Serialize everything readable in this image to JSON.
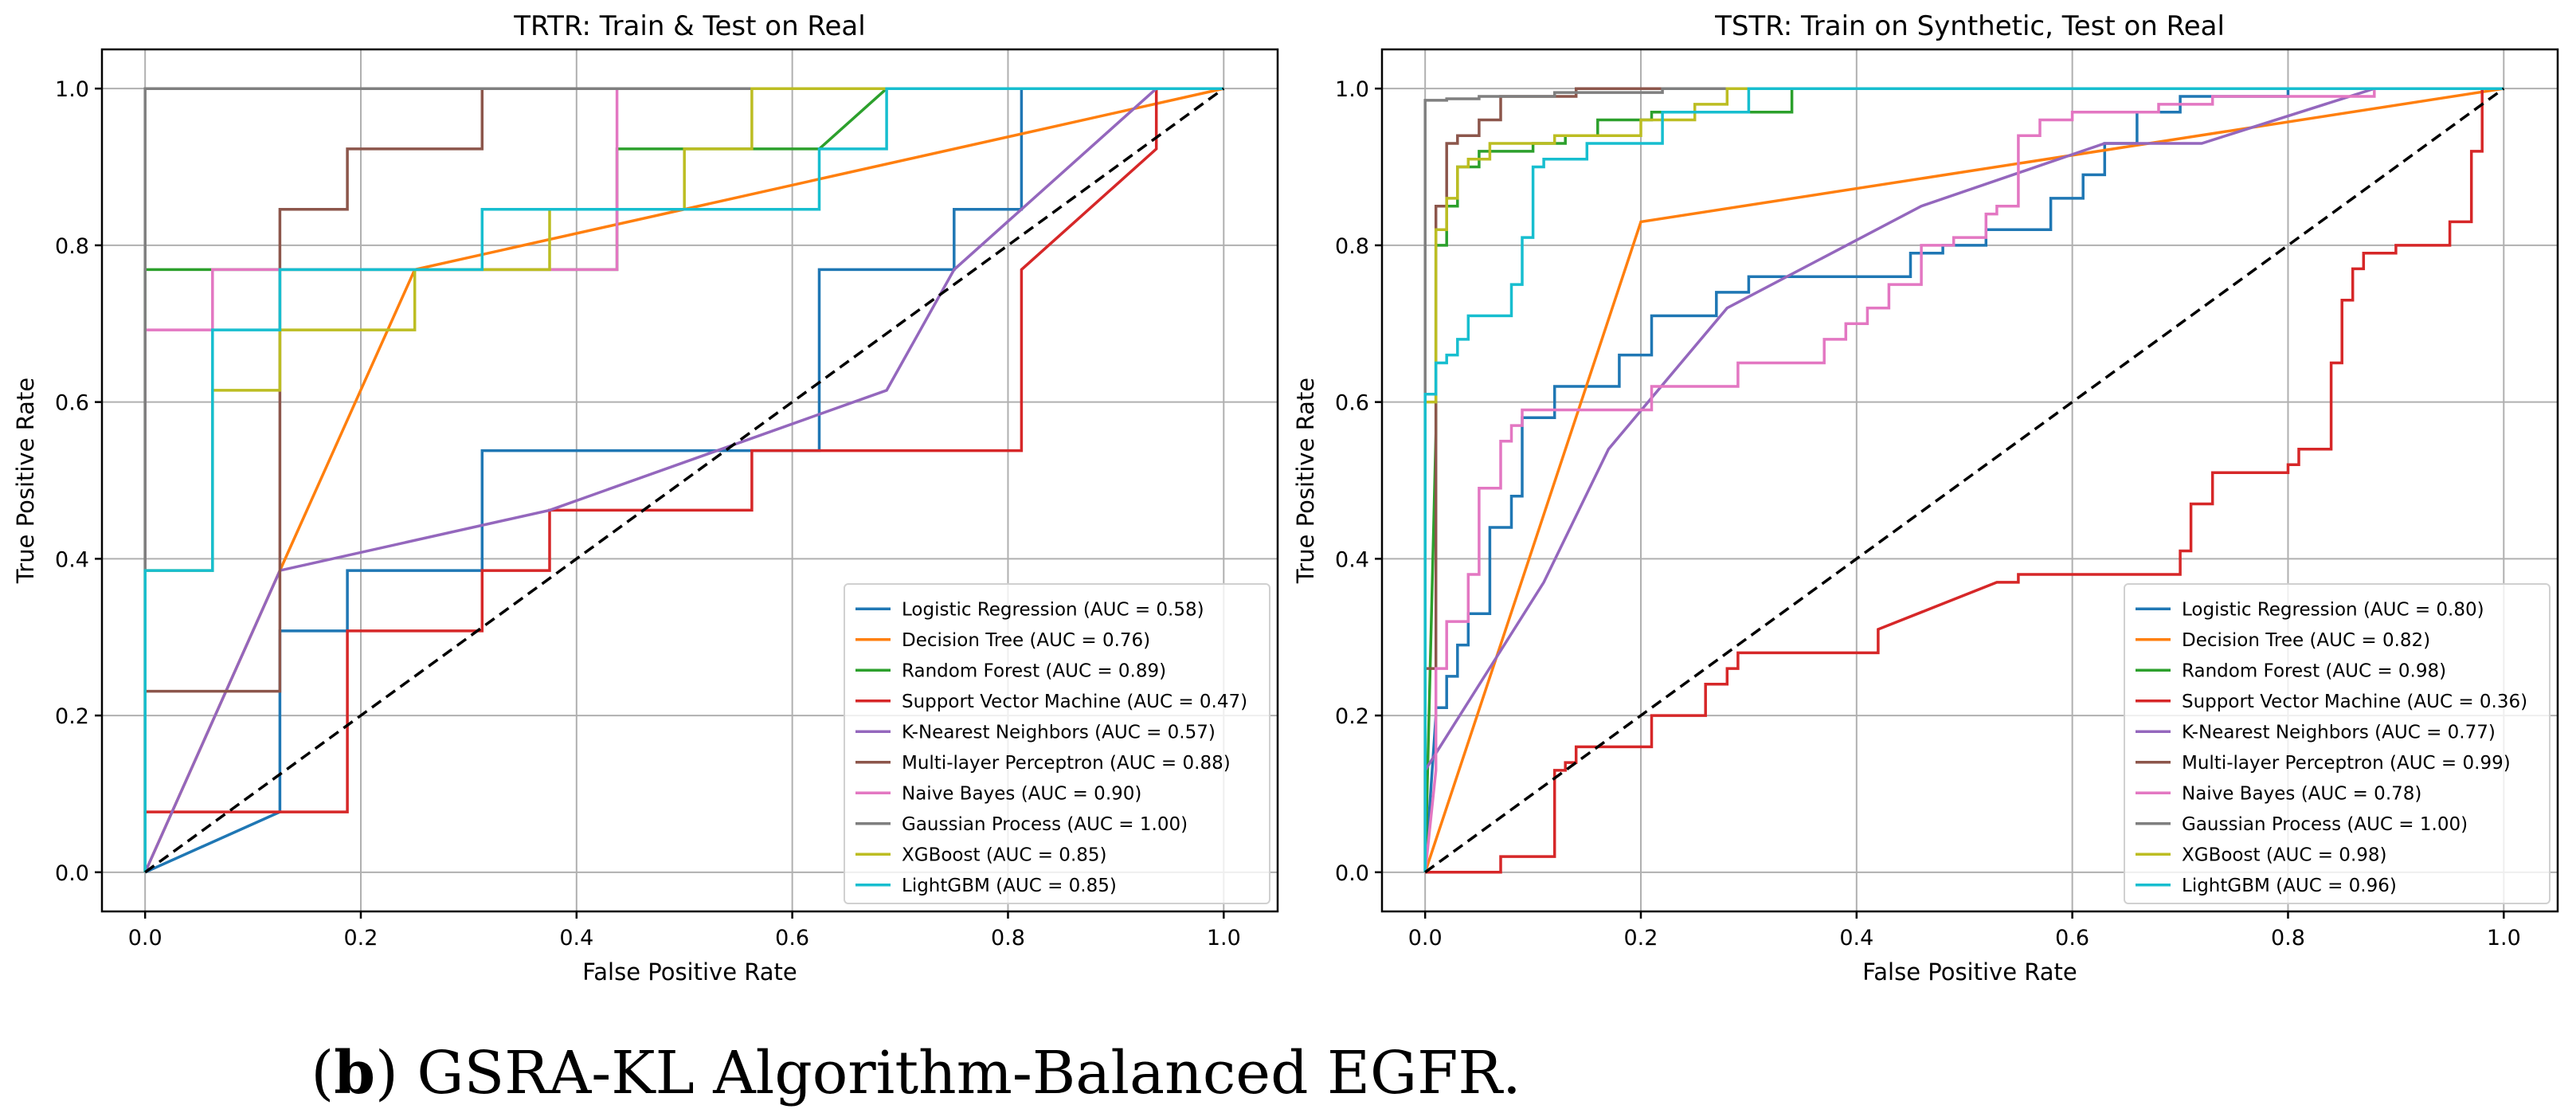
{
  "figure_caption": {
    "label": "b",
    "text": ") GSRA-KL Algorithm-Balanced EGFR.",
    "open_paren": "("
  },
  "colors": {
    "Logistic Regression": "#1f77b4",
    "Decision Tree": "#ff7f0e",
    "Random Forest": "#2ca02c",
    "Support Vector Machine": "#d62728",
    "K-Nearest Neighbors": "#9467bd",
    "Multi-layer Perceptron": "#8c564b",
    "Naive Bayes": "#e377c2",
    "Gaussian Process": "#7f7f7f",
    "XGBoost": "#bcbd22",
    "LightGBM": "#17becf",
    "diagonal": "#000000"
  },
  "chart_data": [
    {
      "type": "line",
      "title": "TRTR: Train & Test on Real",
      "xlabel": "False Positive Rate",
      "ylabel": "True Positive Rate",
      "xlim": [
        -0.04,
        1.05
      ],
      "ylim": [
        -0.05,
        1.05
      ],
      "xticks": [
        "0.0",
        "0.2",
        "0.4",
        "0.6",
        "0.8",
        "1.0"
      ],
      "yticks": [
        "0.0",
        "0.2",
        "0.4",
        "0.6",
        "0.8",
        "1.0"
      ],
      "grid": true,
      "legend_position": "lower-right",
      "legend": [
        "Logistic Regression (AUC = 0.58)",
        "Decision Tree (AUC = 0.76)",
        "Random Forest (AUC = 0.89)",
        "Support Vector Machine (AUC = 0.47)",
        "K-Nearest Neighbors (AUC = 0.57)",
        "Multi-layer Perceptron (AUC = 0.88)",
        "Naive Bayes (AUC = 0.90)",
        "Gaussian Process (AUC = 1.00)",
        "XGBoost (AUC = 0.85)",
        "LightGBM (AUC = 0.85)"
      ],
      "series": [
        {
          "name": "Logistic Regression",
          "auc": 0.58,
          "x": [
            0,
            0.125,
            0.125,
            0.1875,
            0.1875,
            0.3125,
            0.3125,
            0.625,
            0.625,
            0.75,
            0.75,
            0.8125,
            0.8125,
            0.9375,
            1.0
          ],
          "y": [
            0,
            0.077,
            0.308,
            0.308,
            0.385,
            0.385,
            0.538,
            0.538,
            0.769,
            0.769,
            0.846,
            0.846,
            1.0,
            1.0,
            1.0
          ]
        },
        {
          "name": "Decision Tree",
          "auc": 0.76,
          "x": [
            0,
            0.125,
            0.25,
            1.0
          ],
          "y": [
            0,
            0.385,
            0.769,
            1.0
          ]
        },
        {
          "name": "Random Forest",
          "auc": 0.89,
          "x": [
            0,
            0,
            0.0625,
            0.0625,
            0.4375,
            0.4375,
            0.5,
            0.5,
            0.625,
            0.6875,
            0.6875,
            1.0
          ],
          "y": [
            0,
            0.769,
            0.769,
            0.769,
            0.769,
            0.923,
            0.923,
            0.923,
            0.923,
            1.0,
            1.0,
            1.0
          ]
        },
        {
          "name": "Support Vector Machine",
          "auc": 0.47,
          "x": [
            0,
            0,
            0.1875,
            0.1875,
            0.3125,
            0.3125,
            0.375,
            0.375,
            0.5625,
            0.5625,
            0.8125,
            0.8125,
            0.9375,
            0.9375,
            1.0
          ],
          "y": [
            0,
            0.077,
            0.077,
            0.308,
            0.308,
            0.385,
            0.385,
            0.462,
            0.462,
            0.538,
            0.538,
            0.769,
            0.923,
            1.0,
            1.0
          ]
        },
        {
          "name": "K-Nearest Neighbors",
          "auc": 0.57,
          "x": [
            0,
            0.125,
            0.375,
            0.6875,
            0.75,
            0.9375,
            1.0
          ],
          "y": [
            0,
            0.385,
            0.462,
            0.615,
            0.769,
            1.0,
            1.0
          ]
        },
        {
          "name": "Multi-layer Perceptron",
          "auc": 0.88,
          "x": [
            0,
            0,
            0.125,
            0.125,
            0.1875,
            0.1875,
            0.3125,
            0.3125,
            1.0
          ],
          "y": [
            0,
            0.231,
            0.231,
            0.846,
            0.846,
            0.923,
            0.923,
            1.0,
            1.0
          ]
        },
        {
          "name": "Naive Bayes",
          "auc": 0.9,
          "x": [
            0,
            0,
            0.0625,
            0.0625,
            0.4375,
            0.4375,
            1.0
          ],
          "y": [
            0,
            0.692,
            0.692,
            0.769,
            0.769,
            1.0,
            1.0
          ]
        },
        {
          "name": "Gaussian Process",
          "auc": 1.0,
          "x": [
            0,
            0,
            1.0
          ],
          "y": [
            0,
            1.0,
            1.0
          ]
        },
        {
          "name": "XGBoost",
          "auc": 0.85,
          "x": [
            0,
            0,
            0.0625,
            0.0625,
            0.125,
            0.125,
            0.25,
            0.25,
            0.3125,
            0.3125,
            0.375,
            0.375,
            0.5,
            0.5,
            0.5625,
            0.5625,
            0.6875,
            1.0
          ],
          "y": [
            0,
            0.385,
            0.385,
            0.615,
            0.615,
            0.692,
            0.692,
            0.769,
            0.769,
            0.769,
            0.769,
            0.846,
            0.846,
            0.923,
            0.923,
            1.0,
            1.0,
            1.0
          ]
        },
        {
          "name": "LightGBM",
          "auc": 0.85,
          "x": [
            0,
            0,
            0.0625,
            0.0625,
            0.125,
            0.125,
            0.3125,
            0.3125,
            0.625,
            0.625,
            0.6875,
            0.6875,
            1.0
          ],
          "y": [
            0,
            0.385,
            0.385,
            0.692,
            0.692,
            0.769,
            0.769,
            0.846,
            0.846,
            0.923,
            0.923,
            1.0,
            1.0
          ]
        }
      ],
      "diagonal": {
        "x": [
          0,
          1
        ],
        "y": [
          0,
          1
        ]
      }
    },
    {
      "type": "line",
      "title": "TSTR: Train on Synthetic, Test on Real",
      "xlabel": "False Positive Rate",
      "ylabel": "True Positive Rate",
      "xlim": [
        -0.04,
        1.05
      ],
      "ylim": [
        -0.05,
        1.05
      ],
      "xticks": [
        "0.0",
        "0.2",
        "0.4",
        "0.6",
        "0.8",
        "1.0"
      ],
      "yticks": [
        "0.0",
        "0.2",
        "0.4",
        "0.6",
        "0.8",
        "1.0"
      ],
      "grid": true,
      "legend_position": "lower-right",
      "legend": [
        "Logistic Regression (AUC = 0.80)",
        "Decision Tree (AUC = 0.82)",
        "Random Forest (AUC = 0.98)",
        "Support Vector Machine (AUC = 0.36)",
        "K-Nearest Neighbors (AUC = 0.77)",
        "Multi-layer Perceptron (AUC = 0.99)",
        "Naive Bayes (AUC = 0.78)",
        "Gaussian Process (AUC = 1.00)",
        "XGBoost (AUC = 0.98)",
        "LightGBM (AUC = 0.96)"
      ],
      "series": [
        {
          "name": "Logistic Regression",
          "auc": 0.8,
          "x": [
            0,
            0.01,
            0.01,
            0.02,
            0.02,
            0.03,
            0.03,
            0.04,
            0.04,
            0.06,
            0.06,
            0.08,
            0.08,
            0.09,
            0.09,
            0.12,
            0.12,
            0.18,
            0.18,
            0.21,
            0.21,
            0.27,
            0.27,
            0.3,
            0.3,
            0.45,
            0.45,
            0.48,
            0.48,
            0.52,
            0.52,
            0.58,
            0.58,
            0.61,
            0.61,
            0.63,
            0.63,
            0.66,
            0.66,
            0.7,
            0.7,
            0.8,
            0.8,
            1.0
          ],
          "y": [
            0,
            0.2,
            0.21,
            0.21,
            0.25,
            0.25,
            0.29,
            0.29,
            0.33,
            0.33,
            0.44,
            0.44,
            0.48,
            0.48,
            0.58,
            0.58,
            0.62,
            0.62,
            0.66,
            0.66,
            0.71,
            0.71,
            0.74,
            0.74,
            0.76,
            0.76,
            0.79,
            0.79,
            0.8,
            0.8,
            0.82,
            0.82,
            0.86,
            0.86,
            0.89,
            0.89,
            0.93,
            0.93,
            0.97,
            0.97,
            0.99,
            0.99,
            1.0,
            1.0
          ]
        },
        {
          "name": "Decision Tree",
          "auc": 0.82,
          "x": [
            0,
            0.2,
            1.0
          ],
          "y": [
            0,
            0.83,
            1.0
          ]
        },
        {
          "name": "Random Forest",
          "auc": 0.98,
          "x": [
            0,
            0.01,
            0.01,
            0.02,
            0.02,
            0.03,
            0.03,
            0.05,
            0.05,
            0.1,
            0.1,
            0.13,
            0.13,
            0.16,
            0.16,
            0.21,
            0.21,
            0.34,
            0.34,
            0.6,
            1.0
          ],
          "y": [
            0,
            0.56,
            0.8,
            0.8,
            0.85,
            0.85,
            0.9,
            0.9,
            0.92,
            0.92,
            0.93,
            0.93,
            0.94,
            0.94,
            0.96,
            0.96,
            0.97,
            0.97,
            1.0,
            1.0,
            1.0
          ]
        },
        {
          "name": "Support Vector Machine",
          "auc": 0.36,
          "x": [
            0,
            0.07,
            0.07,
            0.12,
            0.12,
            0.13,
            0.13,
            0.14,
            0.14,
            0.15,
            0.15,
            0.21,
            0.21,
            0.26,
            0.26,
            0.28,
            0.28,
            0.29,
            0.29,
            0.3,
            0.3,
            0.42,
            0.42,
            0.53,
            0.55,
            0.55,
            0.7,
            0.7,
            0.71,
            0.71,
            0.73,
            0.73,
            0.74,
            0.74,
            0.8,
            0.8,
            0.81,
            0.81,
            0.84,
            0.84,
            0.85,
            0.85,
            0.86,
            0.86,
            0.87,
            0.87,
            0.9,
            0.9,
            0.95,
            0.95,
            0.97,
            0.97,
            0.98,
            0.98,
            1.0
          ],
          "y": [
            0,
            0,
            0.02,
            0.02,
            0.13,
            0.13,
            0.14,
            0.14,
            0.16,
            0.16,
            0.16,
            0.16,
            0.2,
            0.2,
            0.24,
            0.24,
            0.26,
            0.26,
            0.28,
            0.28,
            0.28,
            0.28,
            0.31,
            0.37,
            0.37,
            0.38,
            0.38,
            0.41,
            0.41,
            0.47,
            0.47,
            0.51,
            0.51,
            0.51,
            0.51,
            0.52,
            0.52,
            0.54,
            0.54,
            0.65,
            0.65,
            0.73,
            0.73,
            0.77,
            0.77,
            0.79,
            0.79,
            0.8,
            0.8,
            0.83,
            0.83,
            0.92,
            0.92,
            1.0,
            1.0
          ]
        },
        {
          "name": "K-Nearest Neighbors",
          "auc": 0.77,
          "x": [
            0,
            0,
            0.11,
            0.17,
            0.28,
            0.46,
            0.63,
            0.72,
            0.88,
            1.0
          ],
          "y": [
            0,
            0.13,
            0.37,
            0.54,
            0.72,
            0.85,
            0.93,
            0.93,
            1.0,
            1.0
          ]
        },
        {
          "name": "Multi-layer Perceptron",
          "auc": 0.99,
          "x": [
            0,
            0,
            0.01,
            0.01,
            0.02,
            0.02,
            0.03,
            0.03,
            0.05,
            0.05,
            0.07,
            0.07,
            0.14,
            0.14,
            0.3,
            1.0
          ],
          "y": [
            0,
            0.26,
            0.26,
            0.85,
            0.85,
            0.93,
            0.93,
            0.94,
            0.94,
            0.96,
            0.96,
            0.99,
            0.99,
            1.0,
            1.0,
            1.0
          ]
        },
        {
          "name": "Naive Bayes",
          "auc": 0.78,
          "x": [
            0,
            0.01,
            0.01,
            0.02,
            0.02,
            0.04,
            0.04,
            0.05,
            0.05,
            0.07,
            0.07,
            0.08,
            0.08,
            0.09,
            0.09,
            0.21,
            0.21,
            0.29,
            0.29,
            0.37,
            0.37,
            0.39,
            0.39,
            0.41,
            0.41,
            0.43,
            0.43,
            0.46,
            0.46,
            0.49,
            0.49,
            0.52,
            0.52,
            0.53,
            0.53,
            0.55,
            0.55,
            0.57,
            0.57,
            0.6,
            0.6,
            0.68,
            0.68,
            0.73,
            0.73,
            0.79,
            0.79,
            0.88,
            0.88,
            1.0
          ],
          "y": [
            0,
            0.13,
            0.26,
            0.26,
            0.32,
            0.32,
            0.38,
            0.38,
            0.49,
            0.49,
            0.55,
            0.55,
            0.57,
            0.57,
            0.59,
            0.59,
            0.62,
            0.62,
            0.65,
            0.65,
            0.68,
            0.68,
            0.7,
            0.7,
            0.72,
            0.72,
            0.75,
            0.75,
            0.8,
            0.8,
            0.81,
            0.81,
            0.84,
            0.84,
            0.85,
            0.85,
            0.94,
            0.94,
            0.96,
            0.96,
            0.97,
            0.97,
            0.98,
            0.98,
            0.99,
            0.99,
            0.99,
            0.99,
            1.0,
            1.0
          ]
        },
        {
          "name": "Gaussian Process",
          "auc": 1.0,
          "x": [
            0,
            0,
            0.02,
            0.02,
            0.05,
            0.05,
            0.12,
            0.12,
            0.22,
            0.22,
            1.0
          ],
          "y": [
            0,
            0.985,
            0.985,
            0.987,
            0.987,
            0.99,
            0.99,
            0.995,
            0.995,
            1.0,
            1.0
          ]
        },
        {
          "name": "XGBoost",
          "auc": 0.98,
          "x": [
            0,
            0,
            0.01,
            0.01,
            0.02,
            0.02,
            0.03,
            0.03,
            0.04,
            0.04,
            0.06,
            0.06,
            0.12,
            0.12,
            0.2,
            0.2,
            0.25,
            0.25,
            0.28,
            0.28,
            1.0
          ],
          "y": [
            0,
            0.6,
            0.6,
            0.82,
            0.82,
            0.86,
            0.86,
            0.9,
            0.9,
            0.91,
            0.91,
            0.93,
            0.93,
            0.94,
            0.94,
            0.96,
            0.96,
            0.98,
            0.98,
            1.0,
            1.0
          ]
        },
        {
          "name": "LightGBM",
          "auc": 0.96,
          "x": [
            0,
            0,
            0.01,
            0.01,
            0.02,
            0.02,
            0.03,
            0.03,
            0.04,
            0.04,
            0.08,
            0.08,
            0.09,
            0.09,
            0.1,
            0.1,
            0.11,
            0.11,
            0.12,
            0.12,
            0.15,
            0.15,
            0.22,
            0.22,
            0.29,
            0.29,
            0.3,
            0.3,
            1.0
          ],
          "y": [
            0,
            0.61,
            0.61,
            0.65,
            0.65,
            0.66,
            0.66,
            0.68,
            0.68,
            0.71,
            0.71,
            0.75,
            0.75,
            0.81,
            0.81,
            0.9,
            0.9,
            0.91,
            0.91,
            0.91,
            0.91,
            0.93,
            0.93,
            0.97,
            0.97,
            0.97,
            0.97,
            1.0,
            1.0
          ]
        }
      ],
      "diagonal": {
        "x": [
          0,
          1
        ],
        "y": [
          0,
          1
        ]
      }
    }
  ]
}
